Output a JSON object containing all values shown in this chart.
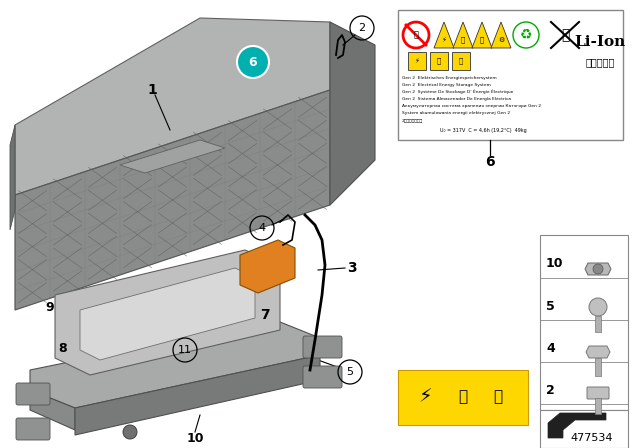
{
  "bg_color": "#ffffff",
  "diagram_number": "477534",
  "teal_color": "#00b0b0",
  "orange_color": "#e08020",
  "gray_top": "#b8baba",
  "gray_front": "#909090",
  "gray_side": "#787878",
  "gray_base": "#a0a2a2",
  "li_ion_text": "Li-Ion",
  "chinese_text": "锂离子电池",
  "small_texts": [
    "Gen 2  Elektrisches Energiespeichersystem",
    "Gen 2  Electrical Energy Storage System",
    "Gen 2  Système De Stockage D’ Énergie Électrique",
    "Gen 2  Sistema Almacenador De Energía Eléctrica",
    "Аккумуляторная система хранения энергии Катэгори Gen 2",
    "System akumulowania energii elektrycznej Gen 2",
    "2代电能蓄积装置"
  ],
  "spec_text": "U₀ = 317V  C = 4,6h (19,2°C)  49kg"
}
